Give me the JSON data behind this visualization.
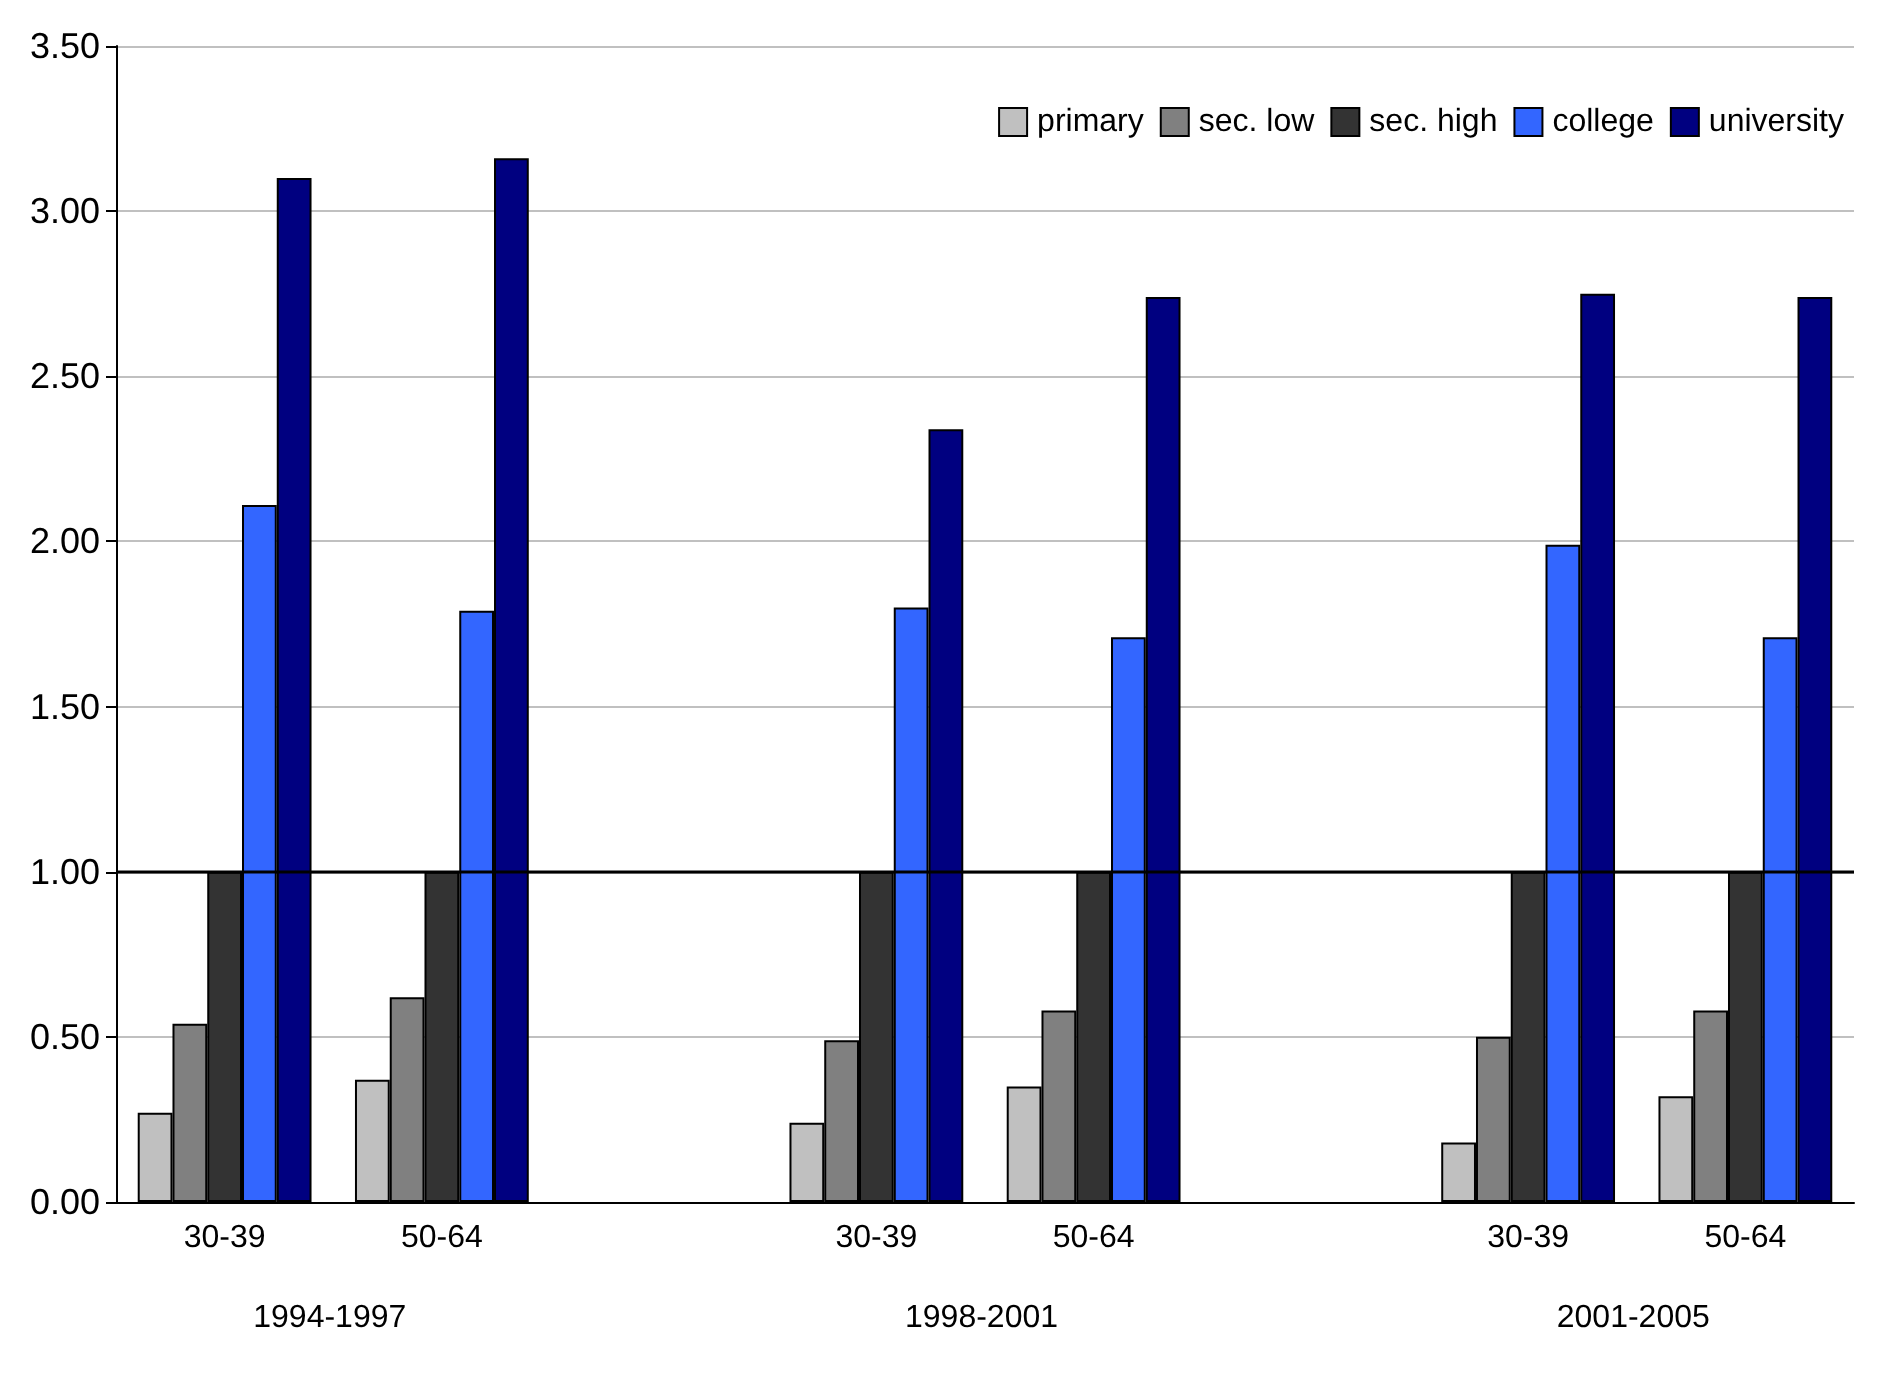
{
  "chart_data": {
    "type": "bar",
    "categories": [
      "30-39",
      "50-64",
      null,
      "30-39",
      "50-64",
      null,
      "30-39",
      "50-64"
    ],
    "series": [
      {
        "name": "primary",
        "color": "#c0c0c0",
        "values": [
          0.27,
          0.37,
          null,
          0.24,
          0.35,
          null,
          0.18,
          0.32
        ]
      },
      {
        "name": "sec. low",
        "color": "#808080",
        "values": [
          0.54,
          0.62,
          null,
          0.49,
          0.58,
          null,
          0.5,
          0.58
        ]
      },
      {
        "name": "sec. high",
        "color": "#333333",
        "values": [
          1.0,
          1.0,
          null,
          1.0,
          1.0,
          null,
          1.0,
          1.0
        ]
      },
      {
        "name": "college",
        "color": "#3366ff",
        "values": [
          2.11,
          1.79,
          null,
          1.8,
          1.71,
          null,
          1.99,
          1.71
        ]
      },
      {
        "name": "university",
        "color": "#000080",
        "values": [
          3.1,
          3.16,
          null,
          2.34,
          2.74,
          null,
          2.75,
          2.74
        ]
      }
    ],
    "ylim": [
      0,
      3.5
    ],
    "yticks": [
      {
        "value": 0,
        "label": "0.00"
      },
      {
        "value": 0.5,
        "label": "0.50"
      },
      {
        "value": 1,
        "label": "1.00"
      },
      {
        "value": 1.5,
        "label": "1.50"
      },
      {
        "value": 2,
        "label": "2.00"
      },
      {
        "value": 2.5,
        "label": "2.50"
      },
      {
        "value": 3,
        "label": "3.00"
      },
      {
        "value": 3.5,
        "label": "3.50"
      }
    ],
    "ref_lines": [
      {
        "axis": "y",
        "value": 1,
        "color": "#000000"
      }
    ],
    "annotations": [
      "1994-1997",
      "1998-2001",
      "2001-2005"
    ],
    "grid": "y",
    "legend": "top right"
  }
}
